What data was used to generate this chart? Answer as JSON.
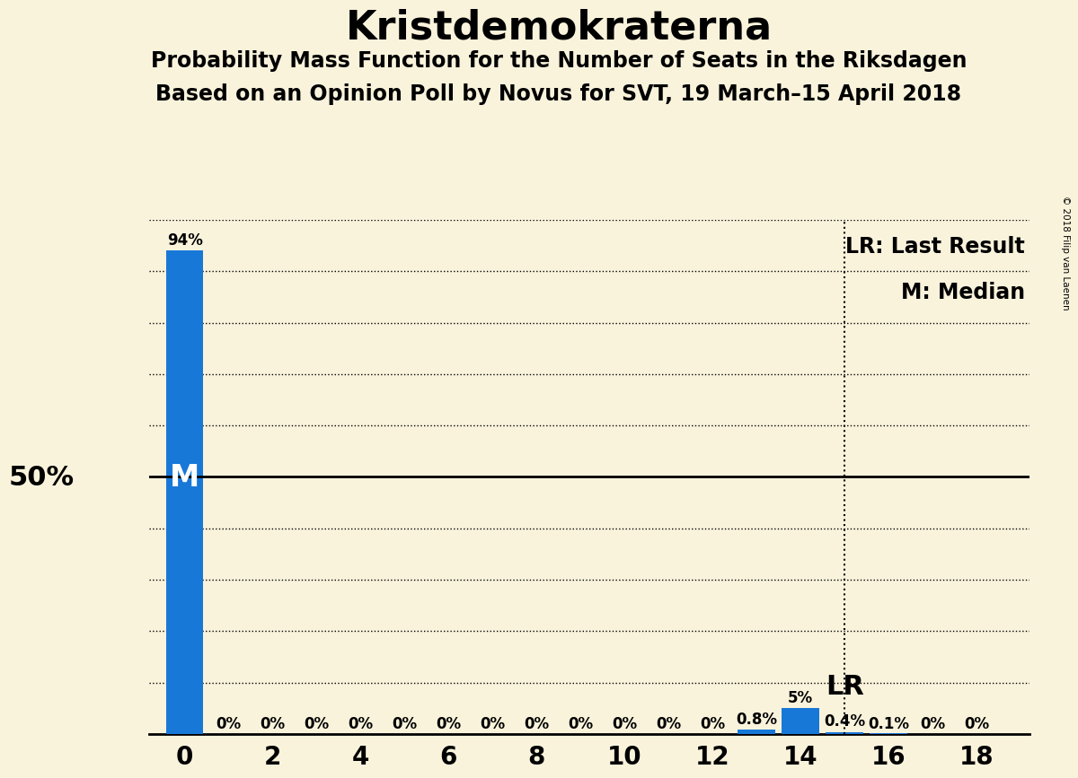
{
  "title": "Kristdemokraterna",
  "subtitle1": "Probability Mass Function for the Number of Seats in the Riksdagen",
  "subtitle2": "Based on an Opinion Poll by Novus for SVT, 19 March–15 April 2018",
  "copyright": "© 2018 Filip van Laenen",
  "background_color": "#faf3dc",
  "bar_color": "#1878d8",
  "seats": [
    0,
    1,
    2,
    3,
    4,
    5,
    6,
    7,
    8,
    9,
    10,
    11,
    12,
    13,
    14,
    15,
    16,
    17,
    18
  ],
  "probabilities": [
    0.94,
    0.0,
    0.0,
    0.0,
    0.0,
    0.0,
    0.0,
    0.0,
    0.0,
    0.0,
    0.0,
    0.0,
    0.0,
    0.008,
    0.05,
    0.004,
    0.001,
    0.0,
    0.0
  ],
  "labels": [
    "94%",
    "0%",
    "0%",
    "0%",
    "0%",
    "0%",
    "0%",
    "0%",
    "0%",
    "0%",
    "0%",
    "0%",
    "0%",
    "0.8%",
    "5%",
    "0.4%",
    "0.1%",
    "0%",
    "0%"
  ],
  "median_seat": 0,
  "last_result_seat": 15,
  "ylim": [
    0,
    1.0
  ],
  "ytick_values": [
    0.1,
    0.2,
    0.3,
    0.4,
    0.5,
    0.6,
    0.7,
    0.8,
    0.9,
    1.0
  ],
  "xticks": [
    0,
    2,
    4,
    6,
    8,
    10,
    12,
    14,
    16,
    18
  ],
  "legend_lr": "LR: Last Result",
  "legend_m": "M: Median",
  "fifty_pct_label": "50%",
  "lr_label": "LR",
  "m_label": "M",
  "title_fontsize": 32,
  "subtitle_fontsize": 17,
  "axis_label_fontsize": 22,
  "bar_label_fontsize": 12,
  "legend_fontsize": 17,
  "xtick_fontsize": 20
}
